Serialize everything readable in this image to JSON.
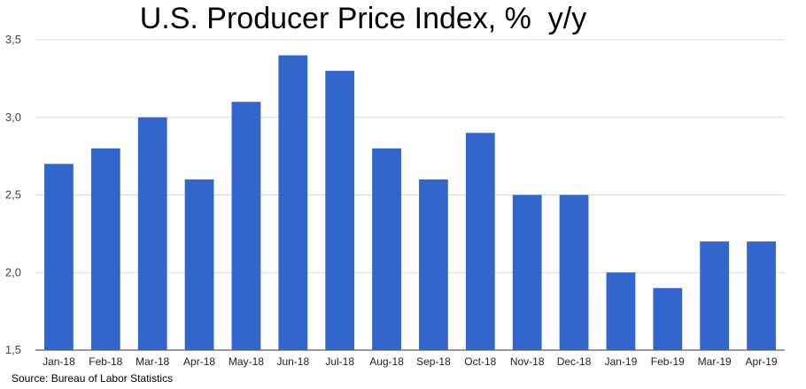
{
  "chart_data": {
    "type": "bar",
    "title": "U.S. Producer Price Index, %  y/y",
    "categories": [
      "Jan-18",
      "Feb-18",
      "Mar-18",
      "Apr-18",
      "May-18",
      "Jun-18",
      "Jul-18",
      "Aug-18",
      "Sep-18",
      "Oct-18",
      "Nov-18",
      "Dec-18",
      "Jan-19",
      "Feb-19",
      "Mar-19",
      "Apr-19"
    ],
    "values": [
      2.7,
      2.8,
      3.0,
      2.6,
      3.1,
      3.4,
      3.3,
      2.8,
      2.6,
      2.9,
      2.5,
      2.5,
      2.0,
      1.9,
      2.2,
      2.2
    ],
    "ylim": [
      1.5,
      3.5
    ],
    "yticks": [
      "1,5",
      "2,0",
      "2,5",
      "3,0",
      "3,5"
    ],
    "xlabel": "",
    "ylabel": "",
    "grid": true,
    "legend": "none",
    "bar_color": "#3366cc",
    "grid_color": "#d9d9d9"
  },
  "source": "Source: Bureau of Labor Statistics"
}
